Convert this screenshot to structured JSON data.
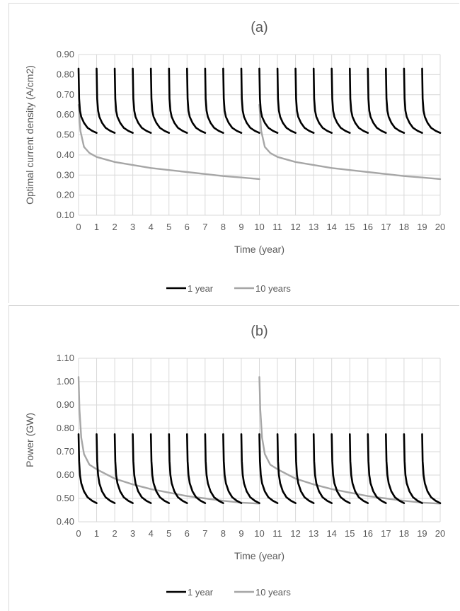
{
  "chart_data": [
    {
      "type": "line",
      "title": "(a)",
      "xlabel": "Time (year)",
      "ylabel": "Optimal current density (A/cm2)",
      "xlim": [
        0,
        20
      ],
      "ylim": [
        0.1,
        0.9
      ],
      "x_ticks": [
        "0",
        "1",
        "2",
        "3",
        "4",
        "5",
        "6",
        "7",
        "8",
        "9",
        "10",
        "11",
        "12",
        "13",
        "14",
        "15",
        "16",
        "17",
        "18",
        "19",
        "20"
      ],
      "y_ticks": [
        "0.10",
        "0.20",
        "0.30",
        "0.40",
        "0.50",
        "0.60",
        "0.70",
        "0.80",
        "0.90"
      ],
      "grid": true,
      "legend_position": "bottom",
      "series": [
        {
          "name": "1 year",
          "color": "#000000",
          "cycle_years": 1,
          "cycle_profile": [
            [
              0,
              0.83
            ],
            [
              0.03,
              0.68
            ],
            [
              0.08,
              0.62
            ],
            [
              0.15,
              0.59
            ],
            [
              0.3,
              0.56
            ],
            [
              0.5,
              0.535
            ],
            [
              0.75,
              0.52
            ],
            [
              1.0,
              0.51
            ]
          ]
        },
        {
          "name": "10 years",
          "color": "#a6a6a6",
          "cycle_years": 10,
          "cycle_profile": [
            [
              0,
              0.65
            ],
            [
              0.1,
              0.52
            ],
            [
              0.3,
              0.44
            ],
            [
              0.6,
              0.41
            ],
            [
              1,
              0.39
            ],
            [
              2,
              0.365
            ],
            [
              3,
              0.35
            ],
            [
              4,
              0.335
            ],
            [
              5,
              0.325
            ],
            [
              6,
              0.315
            ],
            [
              7,
              0.305
            ],
            [
              8,
              0.295
            ],
            [
              9,
              0.288
            ],
            [
              10,
              0.28
            ]
          ]
        }
      ]
    },
    {
      "type": "line",
      "title": "(b)",
      "xlabel": "Time (year)",
      "ylabel": "Power (GW)",
      "xlim": [
        0,
        20
      ],
      "ylim": [
        0.4,
        1.1
      ],
      "x_ticks": [
        "0",
        "1",
        "2",
        "3",
        "4",
        "5",
        "6",
        "7",
        "8",
        "9",
        "10",
        "11",
        "12",
        "13",
        "14",
        "15",
        "16",
        "17",
        "18",
        "19",
        "20"
      ],
      "y_ticks": [
        "0.40",
        "0.50",
        "0.60",
        "0.70",
        "0.80",
        "0.90",
        "1.00",
        "1.10"
      ],
      "grid": true,
      "legend_position": "bottom",
      "series": [
        {
          "name": "1 year",
          "color": "#000000",
          "cycle_years": 1,
          "cycle_profile": [
            [
              0,
              0.775
            ],
            [
              0.03,
              0.66
            ],
            [
              0.08,
              0.6
            ],
            [
              0.15,
              0.565
            ],
            [
              0.3,
              0.53
            ],
            [
              0.5,
              0.505
            ],
            [
              0.75,
              0.49
            ],
            [
              1.0,
              0.48
            ]
          ]
        },
        {
          "name": "10 years",
          "color": "#a6a6a6",
          "cycle_years": 10,
          "cycle_profile": [
            [
              0,
              1.02
            ],
            [
              0.05,
              0.88
            ],
            [
              0.15,
              0.76
            ],
            [
              0.3,
              0.69
            ],
            [
              0.6,
              0.645
            ],
            [
              1,
              0.625
            ],
            [
              2,
              0.585
            ],
            [
              3,
              0.56
            ],
            [
              4,
              0.54
            ],
            [
              5,
              0.525
            ],
            [
              6,
              0.51
            ],
            [
              7,
              0.5
            ],
            [
              8,
              0.49
            ],
            [
              9,
              0.482
            ],
            [
              10,
              0.478
            ]
          ]
        }
      ]
    }
  ]
}
